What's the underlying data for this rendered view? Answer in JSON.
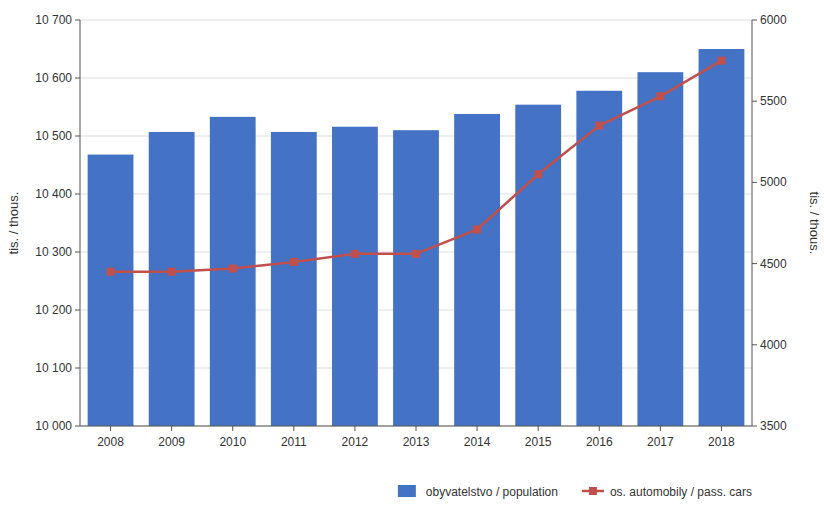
{
  "chart_data": {
    "type": "bar",
    "categories": [
      "2008",
      "2009",
      "2010",
      "2011",
      "2012",
      "2013",
      "2014",
      "2015",
      "2016",
      "2017",
      "2018"
    ],
    "series": [
      {
        "name": "obyvatelstvo / population",
        "type": "bar",
        "color": "#4472C4",
        "values": [
          10468,
          10507,
          10533,
          10507,
          10516,
          10510,
          10538,
          10554,
          10578,
          10610,
          10650
        ]
      },
      {
        "name": "os. automobily / pass. cars",
        "type": "line",
        "color": "#C0504D",
        "marker": "square",
        "axis": "y2",
        "values": [
          4450,
          4450,
          4470,
          4510,
          4560,
          4560,
          4710,
          5050,
          5350,
          5530,
          5750
        ]
      }
    ],
    "ylabel": "tis. / thous.",
    "y2label": "tis. / thous.",
    "ylim": [
      10000,
      10700
    ],
    "yticks": [
      {
        "value": 10000,
        "label": "10 000"
      },
      {
        "value": 10100,
        "label": "10 100"
      },
      {
        "value": 10200,
        "label": "10 200"
      },
      {
        "value": 10300,
        "label": "10 300"
      },
      {
        "value": 10400,
        "label": "10 400"
      },
      {
        "value": 10500,
        "label": "10 500"
      },
      {
        "value": 10600,
        "label": "10 600"
      },
      {
        "value": 10700,
        "label": "10 700"
      }
    ],
    "y2lim": [
      3500,
      6000
    ],
    "y2ticks": [
      3500,
      4000,
      4500,
      5000,
      5500,
      6000
    ],
    "grid": true,
    "legend": "lower right"
  }
}
